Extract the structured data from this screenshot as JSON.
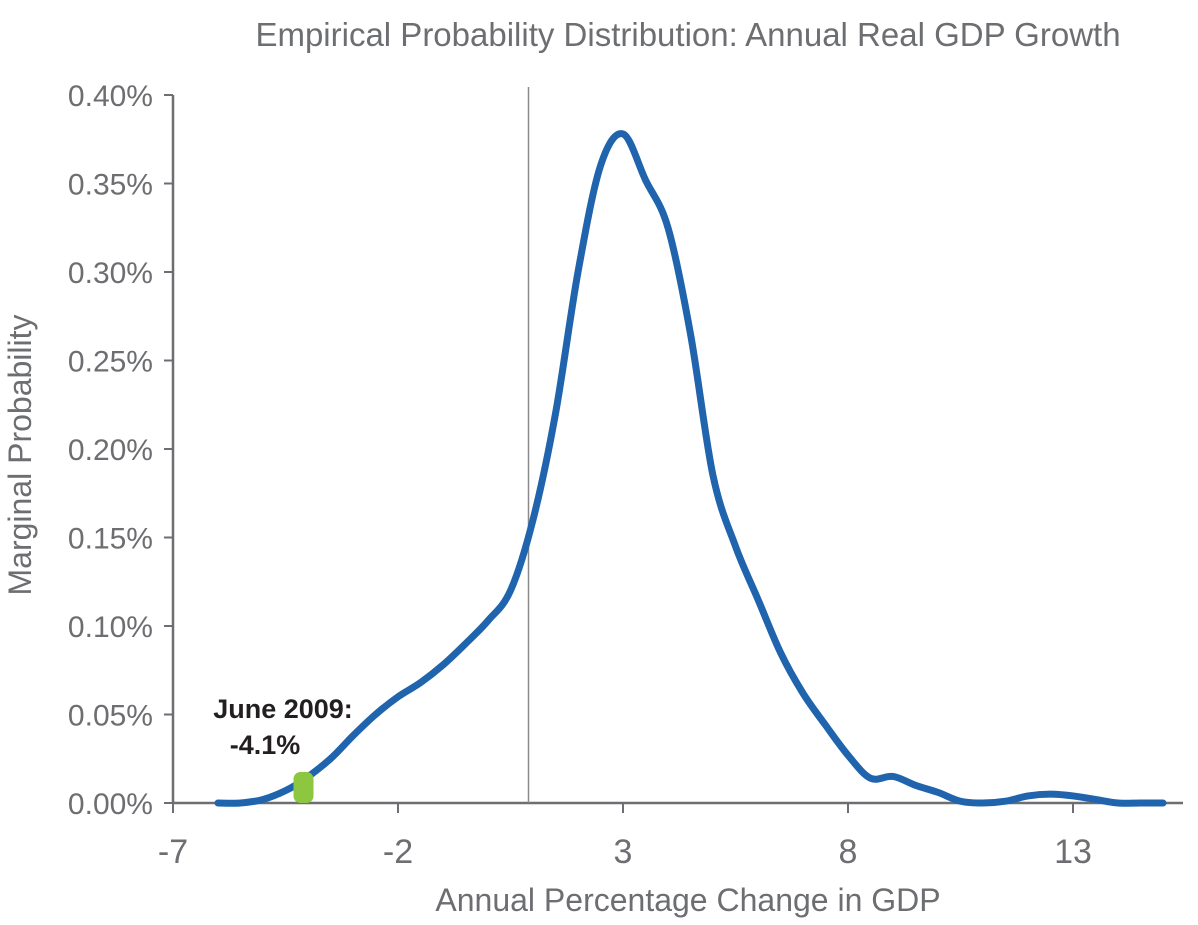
{
  "chart_data": {
    "type": "area",
    "title": "Empirical Probability Distribution: Annual Real GDP Growth",
    "xlabel": "Annual Percentage Change in GDP",
    "ylabel": "Marginal Probability",
    "xlim": [
      -7,
      15.3
    ],
    "ylim": [
      0,
      0.4
    ],
    "x_ticks": [
      -7,
      -2,
      3,
      8,
      13
    ],
    "x_tick_labels": [
      "-7",
      "-2",
      "3",
      "8",
      "13"
    ],
    "y_ticks": [
      0,
      0.05,
      0.1,
      0.15,
      0.2,
      0.25,
      0.3,
      0.35,
      0.4
    ],
    "y_tick_labels": [
      "0.00%",
      "0.05%",
      "0.10%",
      "0.15%",
      "0.20%",
      "0.25%",
      "0.30%",
      "0.35%",
      "0.40%"
    ],
    "vertical_line_x": 0.9,
    "series": [
      {
        "color": "#1f64ad",
        "x": [
          -6.0,
          -5.5,
          -5.0,
          -4.5,
          -4.1,
          -3.5,
          -3.0,
          -2.5,
          -2.0,
          -1.5,
          -1.0,
          -0.5,
          0.0,
          0.5,
          1.0,
          1.5,
          2.0,
          2.5,
          3.0,
          3.5,
          4.0,
          4.5,
          5.0,
          5.5,
          6.0,
          6.5,
          7.0,
          7.5,
          8.0,
          8.5,
          9.0,
          9.5,
          10.0,
          10.5,
          11.0,
          11.5,
          12.0,
          12.5,
          13.0,
          13.5,
          14.0,
          14.5,
          15.0
        ],
        "y": [
          0.0,
          0.0,
          0.002,
          0.007,
          0.013,
          0.025,
          0.038,
          0.05,
          0.06,
          0.068,
          0.078,
          0.09,
          0.103,
          0.12,
          0.16,
          0.22,
          0.3,
          0.36,
          0.378,
          0.352,
          0.325,
          0.265,
          0.185,
          0.145,
          0.115,
          0.085,
          0.062,
          0.044,
          0.027,
          0.014,
          0.015,
          0.01,
          0.006,
          0.001,
          0.0,
          0.001,
          0.004,
          0.005,
          0.004,
          0.002,
          0.0,
          0.0,
          0.0
        ]
      }
    ],
    "marker": {
      "x": -4.1,
      "y": 0.013,
      "color": "#8dc63f"
    },
    "annotation": {
      "line1": "June 2009:",
      "line2": "-4.1%"
    }
  }
}
